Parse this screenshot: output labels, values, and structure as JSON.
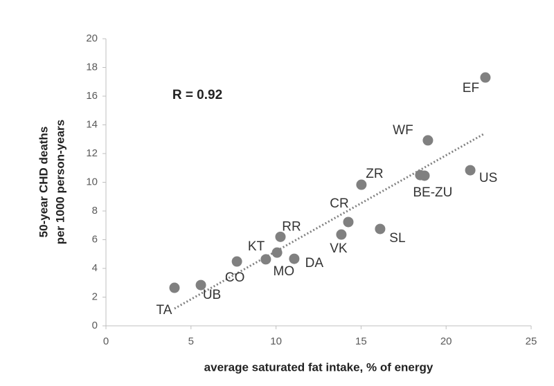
{
  "chart_data": {
    "type": "scatter",
    "annotation": "R = 0.92",
    "x_label": "average saturated fat intake, % of energy",
    "y_label": [
      "50-year CHD deaths",
      "per 1000 person-years"
    ],
    "x": [
      4.03,
      5.58,
      7.7,
      9.4,
      10.06,
      10.26,
      11.07,
      13.84,
      14.25,
      15.02,
      16.12,
      18.48,
      18.73,
      18.93,
      21.42,
      22.31
    ],
    "values": [
      2.65,
      2.84,
      4.48,
      4.63,
      5.1,
      6.2,
      4.67,
      6.36,
      7.23,
      9.83,
      6.75,
      10.5,
      10.46,
      12.92,
      10.84,
      17.3
    ],
    "point_labels": [
      "TA",
      "UB",
      "CO",
      "MO",
      "KT",
      "RR",
      "DA",
      "VK",
      "CR",
      "ZR",
      "SL",
      "BE-ZU",
      null,
      "WF",
      "US",
      "EF"
    ],
    "color": "#808080",
    "trendline": {
      "x": [
        4.03,
        22.27
      ],
      "y": [
        1.2,
        13.4
      ],
      "color": "#808080"
    },
    "xlim": [
      0,
      25
    ],
    "xticks": [
      0,
      5,
      10,
      15,
      20,
      25
    ],
    "ylim": [
      0,
      20
    ],
    "yticks": [
      0,
      2,
      4,
      6,
      8,
      10,
      12,
      14,
      16,
      18,
      20
    ]
  }
}
